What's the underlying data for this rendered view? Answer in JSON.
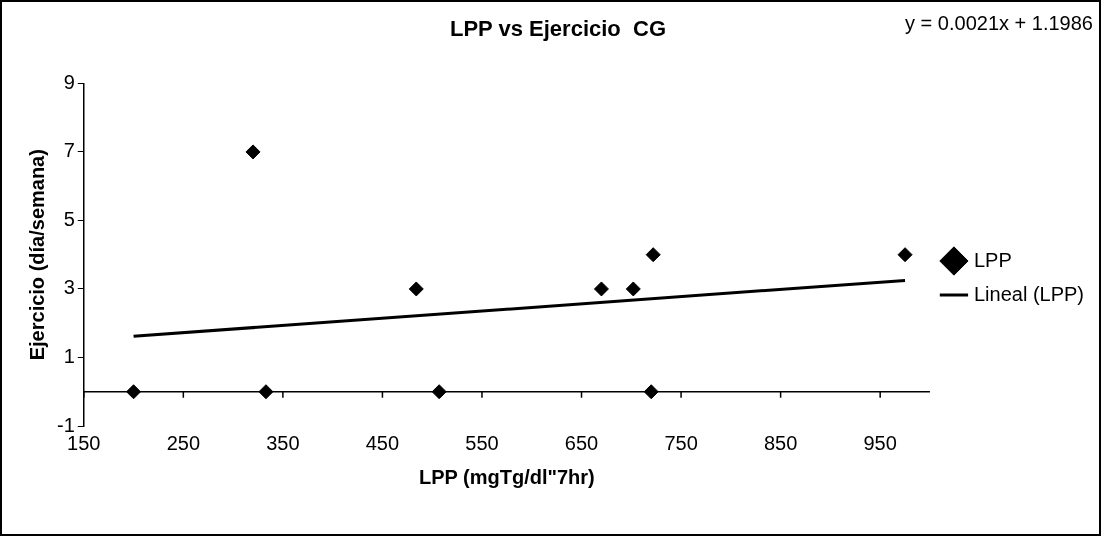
{
  "chart_data": {
    "type": "scatter",
    "title": "LPP vs Ejercicio  CG",
    "xlabel": "LPP (mgTg/dl\"7hr)",
    "ylabel": "Ejercicio (día/semana)",
    "annotations": [
      "y = 0.0021x + 1.1986"
    ],
    "series": [
      {
        "name": "LPP",
        "color": "#000000",
        "marker": "diamond",
        "x": [
          200,
          320,
          333,
          484,
          507,
          670,
          702,
          722,
          720,
          975
        ],
        "values": [
          0,
          7,
          0,
          3,
          0,
          3,
          3,
          4,
          0,
          4
        ]
      },
      {
        "name": "Lineal (LPP)",
        "color": "#000000",
        "type": "line",
        "marker": "none",
        "x": [
          200,
          975
        ],
        "values": [
          1.62,
          3.25
        ]
      }
    ],
    "xlim": [
      150,
      1000
    ],
    "xticks": [
      150,
      250,
      350,
      450,
      550,
      650,
      750,
      850,
      950
    ],
    "ylim": [
      -1,
      9
    ],
    "yticks": [
      -1,
      1,
      3,
      5,
      7,
      9
    ],
    "grid": false,
    "legend": "right"
  }
}
